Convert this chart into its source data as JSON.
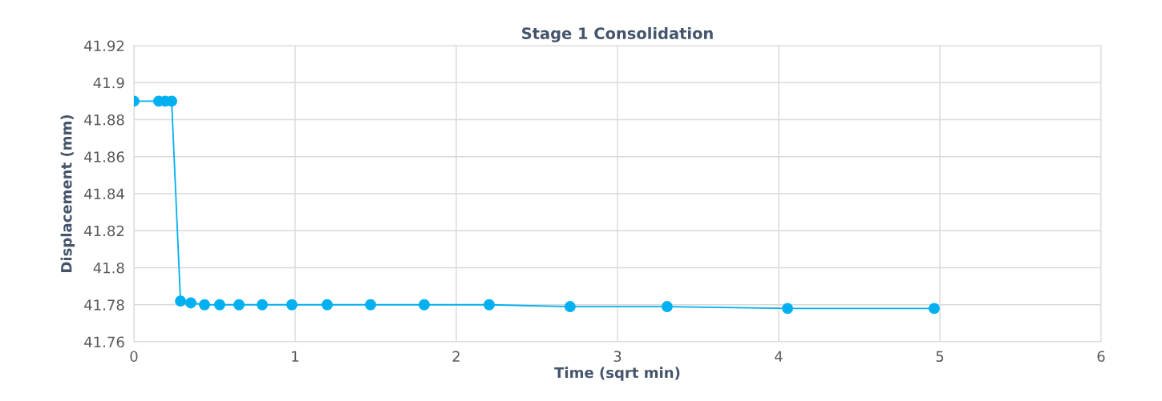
{
  "chart_data": {
    "type": "line",
    "title": "Stage 1 Consolidation",
    "xlabel": "Time (sqrt min)",
    "ylabel": "Displacement (mm)",
    "x": [
      0,
      0.154,
      0.194,
      0.234,
      0.289,
      0.353,
      0.438,
      0.532,
      0.652,
      0.796,
      0.98,
      1.199,
      1.468,
      1.801,
      2.204,
      2.706,
      3.308,
      4.055,
      4.965
    ],
    "series": [
      {
        "color": "#00b0f0",
        "values": [
          41.89,
          41.89,
          41.89,
          41.89,
          41.782,
          41.781,
          41.78,
          41.78,
          41.78,
          41.78,
          41.78,
          41.78,
          41.78,
          41.78,
          41.78,
          41.779,
          41.779,
          41.778,
          41.778
        ]
      }
    ],
    "xlim": [
      0,
      6
    ],
    "xticks": [
      0,
      1,
      2,
      3,
      4,
      5,
      6
    ],
    "ylim": [
      41.76,
      41.92
    ],
    "yticks": [
      41.76,
      41.78,
      {
        "value": 41.8,
        "label": "41.8"
      },
      41.82,
      41.84,
      41.86,
      41.88,
      {
        "value": 41.9,
        "label": "41.9"
      },
      41.92
    ],
    "grid": true,
    "marker": "circle",
    "line_style": "solid",
    "legend": false
  }
}
